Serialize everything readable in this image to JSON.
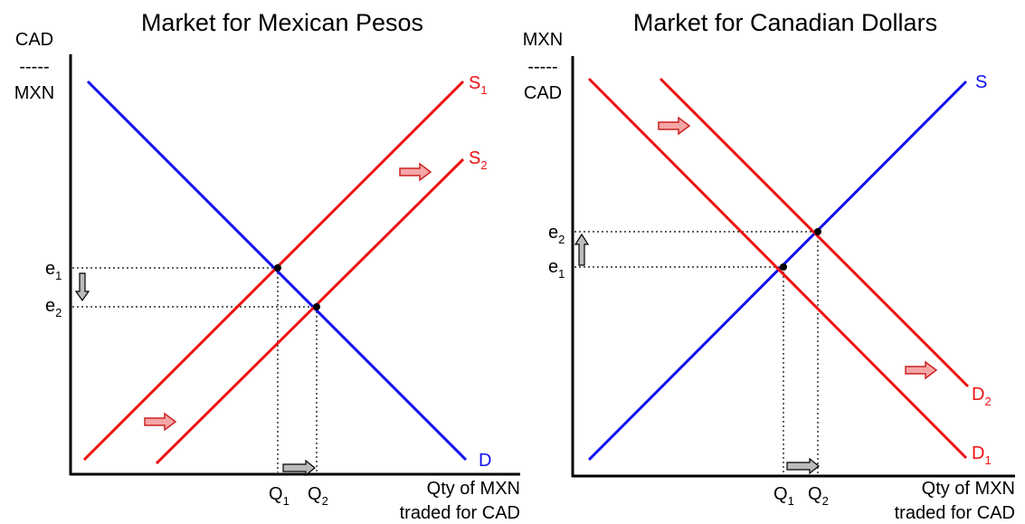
{
  "colors": {
    "demand": "#1010ee",
    "supply": "#ee1111",
    "axis": "#000000",
    "arrow_fill": "#f4a6a6",
    "arrow_stroke": "#cc2222",
    "gray_arrow": "#bbbbbb"
  },
  "left": {
    "title": "Market for Mexican Pesos",
    "y_axis": {
      "top": "CAD",
      "dash": "-----",
      "bottom": "MXN"
    },
    "x_axis": {
      "line1": "Qty of MXN",
      "line2": "traded for CAD"
    },
    "labels": {
      "s1": {
        "main": "S",
        "sub": "1"
      },
      "s2": {
        "main": "S",
        "sub": "2"
      },
      "d": "D",
      "e1": {
        "main": "e",
        "sub": "1"
      },
      "e2": {
        "main": "e",
        "sub": "2"
      },
      "q1": {
        "main": "Q",
        "sub": "1"
      },
      "q2": {
        "main": "Q",
        "sub": "2"
      }
    }
  },
  "right": {
    "title": "Market for Canadian Dollars",
    "y_axis": {
      "top": "MXN",
      "dash": "-----",
      "bottom": "CAD"
    },
    "x_axis": {
      "line1": "Qty of MXN",
      "line2": "traded for CAD"
    },
    "labels": {
      "s": "S",
      "d1": {
        "main": "D",
        "sub": "1"
      },
      "d2": {
        "main": "D",
        "sub": "2"
      },
      "e1": {
        "main": "e",
        "sub": "1"
      },
      "e2": {
        "main": "e",
        "sub": "2"
      },
      "q1": {
        "main": "Q",
        "sub": "1"
      },
      "q2": {
        "main": "Q",
        "sub": "2"
      }
    }
  }
}
